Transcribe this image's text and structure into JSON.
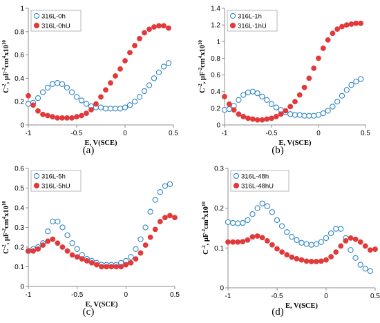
{
  "colors": {
    "open_series": "#2e86c8",
    "filled_series": "#e2393a",
    "axis": "#8c8c8c"
  },
  "chart_data": [
    {
      "type": "scatter",
      "panel_label": "(a)",
      "xlabel": "E, V(SCE)",
      "ylabel": "C",
      "ylabel_sup": "-2",
      "ylabel_rest": ", µF",
      "ylabel_sup2": "-2",
      "ylabel_rest2": "cm",
      "ylabel_sup3": "4",
      "ylabel_rest3": "x10",
      "ylabel_sup4": "10",
      "xlim": [
        -1,
        0.5
      ],
      "ylim": [
        0,
        1
      ],
      "xticks": [
        -1,
        -0.5,
        0,
        0.5
      ],
      "yticks": [
        0,
        0.2,
        0.4,
        0.6,
        0.8,
        1
      ],
      "xtick_labels": [
        "-1",
        "-0.5",
        "0",
        "0.5"
      ],
      "ytick_labels": [
        "0",
        "0.2",
        "0.4",
        "0.6",
        "0.8",
        "1"
      ],
      "legend_position": "top-left",
      "series": [
        {
          "name": "316L-0h",
          "marker": "open",
          "x": [
            -1,
            -0.95,
            -0.9,
            -0.85,
            -0.8,
            -0.75,
            -0.7,
            -0.65,
            -0.6,
            -0.55,
            -0.5,
            -0.45,
            -0.4,
            -0.35,
            -0.3,
            -0.25,
            -0.2,
            -0.15,
            -0.1,
            -0.05,
            0,
            0.05,
            0.1,
            0.15,
            0.2,
            0.25,
            0.3,
            0.35,
            0.4,
            0.45
          ],
          "y": [
            0.18,
            0.19,
            0.23,
            0.28,
            0.32,
            0.35,
            0.36,
            0.35,
            0.32,
            0.28,
            0.24,
            0.21,
            0.18,
            0.16,
            0.15,
            0.15,
            0.14,
            0.14,
            0.14,
            0.14,
            0.15,
            0.17,
            0.2,
            0.24,
            0.29,
            0.34,
            0.4,
            0.45,
            0.5,
            0.53
          ]
        },
        {
          "name": "316L-0hU",
          "marker": "filled",
          "x": [
            -1,
            -0.95,
            -0.9,
            -0.85,
            -0.8,
            -0.75,
            -0.7,
            -0.65,
            -0.6,
            -0.55,
            -0.5,
            -0.45,
            -0.4,
            -0.35,
            -0.3,
            -0.25,
            -0.2,
            -0.15,
            -0.1,
            -0.05,
            0,
            0.05,
            0.1,
            0.15,
            0.2,
            0.25,
            0.3,
            0.35,
            0.4,
            0.45
          ],
          "y": [
            0.25,
            0.17,
            0.12,
            0.09,
            0.08,
            0.07,
            0.06,
            0.06,
            0.06,
            0.06,
            0.07,
            0.08,
            0.1,
            0.13,
            0.18,
            0.24,
            0.3,
            0.36,
            0.42,
            0.48,
            0.55,
            0.62,
            0.68,
            0.74,
            0.79,
            0.82,
            0.84,
            0.85,
            0.85,
            0.83
          ]
        }
      ]
    },
    {
      "type": "scatter",
      "panel_label": "(b)",
      "xlabel": "E, V(SCE)",
      "ylabel": "C",
      "ylabel_sup": "-2",
      "ylabel_rest": ", µF",
      "ylabel_sup2": "-2",
      "ylabel_rest2": "cm",
      "ylabel_sup3": "4",
      "ylabel_rest3": "x10",
      "ylabel_sup4": "10",
      "xlim": [
        -1,
        0.5
      ],
      "ylim": [
        0,
        1.4
      ],
      "xticks": [
        -1,
        -0.5,
        0,
        0.5
      ],
      "yticks": [
        0,
        0.2,
        0.4,
        0.6,
        0.8,
        1,
        1.2,
        1.4
      ],
      "xtick_labels": [
        "-1",
        "-0.5",
        "0",
        "0.5"
      ],
      "ytick_labels": [
        "0",
        "0.2",
        "0.4",
        "0.6",
        "0.8",
        "1",
        "1.2",
        "1.4"
      ],
      "legend_position": "top-left",
      "series": [
        {
          "name": "316L-1h",
          "marker": "open",
          "x": [
            -1,
            -0.95,
            -0.9,
            -0.85,
            -0.8,
            -0.75,
            -0.7,
            -0.65,
            -0.6,
            -0.55,
            -0.5,
            -0.45,
            -0.4,
            -0.35,
            -0.3,
            -0.25,
            -0.2,
            -0.15,
            -0.1,
            -0.05,
            0,
            0.05,
            0.1,
            0.15,
            0.2,
            0.25,
            0.3,
            0.35,
            0.4,
            0.45
          ],
          "y": [
            0.18,
            0.19,
            0.23,
            0.3,
            0.36,
            0.39,
            0.4,
            0.38,
            0.34,
            0.3,
            0.25,
            0.21,
            0.18,
            0.15,
            0.13,
            0.12,
            0.12,
            0.11,
            0.11,
            0.11,
            0.12,
            0.14,
            0.17,
            0.22,
            0.28,
            0.35,
            0.42,
            0.48,
            0.52,
            0.55
          ]
        },
        {
          "name": "316L-1hU",
          "marker": "filled",
          "x": [
            -1,
            -0.95,
            -0.9,
            -0.85,
            -0.8,
            -0.75,
            -0.7,
            -0.65,
            -0.6,
            -0.55,
            -0.5,
            -0.45,
            -0.4,
            -0.35,
            -0.3,
            -0.25,
            -0.2,
            -0.15,
            -0.1,
            -0.05,
            0,
            0.05,
            0.1,
            0.15,
            0.2,
            0.25,
            0.3,
            0.35,
            0.4,
            0.45
          ],
          "y": [
            0.34,
            0.25,
            0.18,
            0.13,
            0.1,
            0.08,
            0.07,
            0.06,
            0.06,
            0.07,
            0.08,
            0.1,
            0.13,
            0.17,
            0.22,
            0.28,
            0.36,
            0.45,
            0.56,
            0.68,
            0.8,
            0.92,
            1.02,
            1.1,
            1.15,
            1.18,
            1.2,
            1.21,
            1.22,
            1.22
          ]
        }
      ]
    },
    {
      "type": "scatter",
      "panel_label": "(c)",
      "xlabel": "E, V(SCE)",
      "ylabel": "C",
      "ylabel_sup": "-2",
      "ylabel_rest": ", µF",
      "ylabel_sup2": "-2",
      "ylabel_rest2": "cm",
      "ylabel_sup3": "4",
      "ylabel_rest3": "x10",
      "ylabel_sup4": "10",
      "xlim": [
        -1,
        0.5
      ],
      "ylim": [
        0,
        0.6
      ],
      "xticks": [
        -1,
        -0.5,
        0,
        0.5
      ],
      "yticks": [
        0,
        0.1,
        0.2,
        0.3,
        0.4,
        0.5,
        0.6
      ],
      "xtick_labels": [
        "-1",
        "-0.5",
        "0",
        "0.5"
      ],
      "ytick_labels": [
        "0",
        "0.1",
        "0.2",
        "0.3",
        "0.4",
        "0.5",
        "0.6"
      ],
      "legend_position": "top-left",
      "series": [
        {
          "name": "316L-5h",
          "marker": "open",
          "x": [
            -1,
            -0.95,
            -0.9,
            -0.85,
            -0.8,
            -0.75,
            -0.7,
            -0.65,
            -0.6,
            -0.55,
            -0.5,
            -0.45,
            -0.4,
            -0.35,
            -0.3,
            -0.25,
            -0.2,
            -0.15,
            -0.1,
            -0.05,
            0,
            0.05,
            0.1,
            0.15,
            0.2,
            0.25,
            0.3,
            0.35,
            0.4,
            0.45
          ],
          "y": [
            0.18,
            0.19,
            0.2,
            0.22,
            0.28,
            0.33,
            0.33,
            0.3,
            0.26,
            0.22,
            0.19,
            0.16,
            0.14,
            0.13,
            0.12,
            0.11,
            0.11,
            0.11,
            0.11,
            0.12,
            0.13,
            0.15,
            0.19,
            0.24,
            0.3,
            0.38,
            0.44,
            0.48,
            0.51,
            0.52
          ]
        },
        {
          "name": "316L-5hU",
          "marker": "filled",
          "x": [
            -1,
            -0.95,
            -0.9,
            -0.85,
            -0.8,
            -0.75,
            -0.7,
            -0.65,
            -0.6,
            -0.55,
            -0.5,
            -0.45,
            -0.4,
            -0.35,
            -0.3,
            -0.25,
            -0.2,
            -0.15,
            -0.1,
            -0.05,
            0,
            0.05,
            0.1,
            0.15,
            0.2,
            0.25,
            0.3,
            0.35,
            0.4,
            0.45,
            0.5
          ],
          "y": [
            0.18,
            0.18,
            0.19,
            0.21,
            0.23,
            0.24,
            0.22,
            0.2,
            0.18,
            0.16,
            0.15,
            0.14,
            0.13,
            0.12,
            0.11,
            0.1,
            0.1,
            0.1,
            0.1,
            0.1,
            0.11,
            0.12,
            0.14,
            0.17,
            0.21,
            0.25,
            0.29,
            0.33,
            0.35,
            0.36,
            0.35
          ]
        }
      ]
    },
    {
      "type": "scatter",
      "panel_label": "(d)",
      "xlabel": "E, V(SCE)",
      "ylabel": "C",
      "ylabel_sup": "-2",
      "ylabel_rest": ", µF",
      "ylabel_sup2": "-2",
      "ylabel_rest2": "cm",
      "ylabel_sup3": "4",
      "ylabel_rest3": "x10",
      "ylabel_sup4": "10",
      "xlim": [
        -1,
        0.5
      ],
      "ylim": [
        0,
        0.3
      ],
      "xticks": [
        -1,
        -0.5,
        0,
        0.5
      ],
      "yticks": [
        0,
        0.1,
        0.2,
        0.3
      ],
      "xtick_labels": [
        "-1",
        "-0.5",
        "0",
        "0.5"
      ],
      "ytick_labels": [
        "0",
        "0.1",
        "0.2",
        "0.3"
      ],
      "legend_position": "top-left",
      "series": [
        {
          "name": "316L-48h",
          "marker": "open",
          "x": [
            -1,
            -0.95,
            -0.9,
            -0.85,
            -0.8,
            -0.75,
            -0.7,
            -0.65,
            -0.6,
            -0.55,
            -0.5,
            -0.45,
            -0.4,
            -0.35,
            -0.3,
            -0.25,
            -0.2,
            -0.15,
            -0.1,
            -0.05,
            0,
            0.05,
            0.1,
            0.15,
            0.2,
            0.25,
            0.3,
            0.35,
            0.4,
            0.45
          ],
          "y": [
            0.165,
            0.163,
            0.162,
            0.163,
            0.17,
            0.185,
            0.2,
            0.212,
            0.205,
            0.19,
            0.17,
            0.155,
            0.14,
            0.128,
            0.12,
            0.113,
            0.11,
            0.108,
            0.11,
            0.115,
            0.125,
            0.137,
            0.148,
            0.148,
            0.125,
            0.095,
            0.075,
            0.058,
            0.048,
            0.042
          ]
        },
        {
          "name": "316L-48hU",
          "marker": "filled",
          "x": [
            -1,
            -0.95,
            -0.9,
            -0.85,
            -0.8,
            -0.75,
            -0.7,
            -0.65,
            -0.6,
            -0.55,
            -0.5,
            -0.45,
            -0.4,
            -0.35,
            -0.3,
            -0.25,
            -0.2,
            -0.15,
            -0.1,
            -0.05,
            0,
            0.05,
            0.1,
            0.15,
            0.2,
            0.25,
            0.3,
            0.35,
            0.4,
            0.45,
            0.5
          ],
          "y": [
            0.115,
            0.115,
            0.115,
            0.116,
            0.12,
            0.128,
            0.13,
            0.126,
            0.118,
            0.108,
            0.098,
            0.09,
            0.083,
            0.077,
            0.073,
            0.07,
            0.067,
            0.066,
            0.066,
            0.067,
            0.07,
            0.078,
            0.09,
            0.105,
            0.118,
            0.125,
            0.122,
            0.115,
            0.105,
            0.095,
            0.097
          ]
        }
      ]
    }
  ]
}
